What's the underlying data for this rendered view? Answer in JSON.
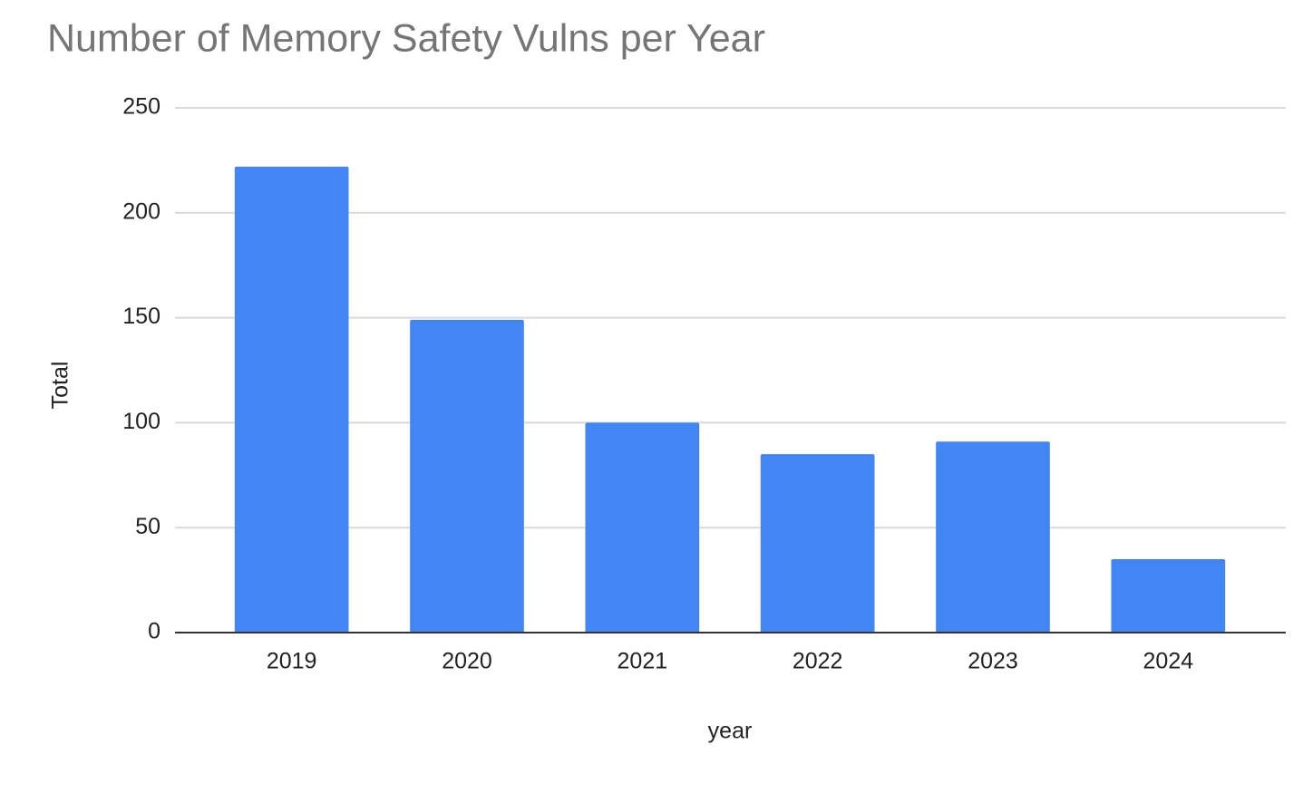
{
  "chart_data": {
    "type": "bar",
    "title": "Number of Memory Safety Vulns per Year",
    "x_label": "year",
    "y_label": "Total",
    "categories": [
      "2019",
      "2020",
      "2021",
      "2022",
      "2023",
      "2024"
    ],
    "values": [
      222,
      149,
      100,
      85,
      91,
      35
    ],
    "color": "#4285f4",
    "ylim": [
      0,
      250
    ],
    "yticks": [
      0,
      50,
      100,
      150,
      200,
      250
    ],
    "grid": true
  }
}
